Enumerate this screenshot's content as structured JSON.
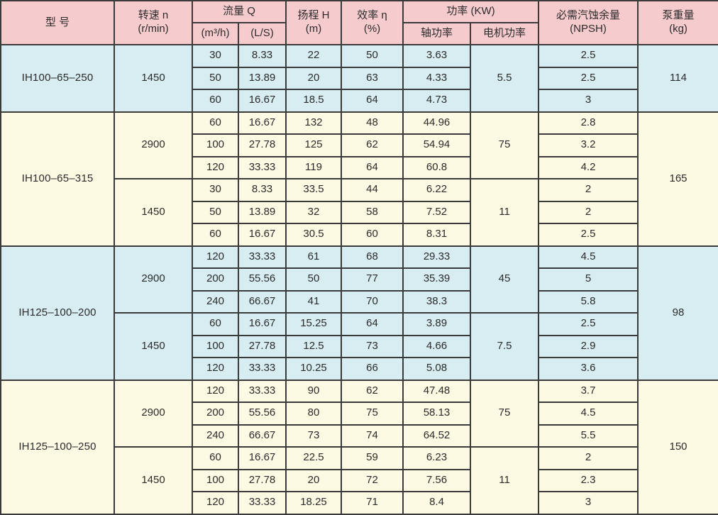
{
  "colors": {
    "header_bg": "#f6cbce",
    "row_blue": "#d7edf2",
    "row_yellow": "#fdfae4",
    "border": "#3a3a3a",
    "text": "#2b2b2b"
  },
  "table": {
    "headers": {
      "model": "型 号",
      "speed_line1": "转速 n",
      "speed_line2": "(r/min)",
      "flow": "流量 Q",
      "flow_m3h": "(m³/h)",
      "flow_ls": "(L/S)",
      "head_line1": "扬程 H",
      "head_line2": "(m)",
      "eff_line1": "效率  η",
      "eff_line2": "(%)",
      "power": "功率 (KW)",
      "shaft_power": "轴功率",
      "motor_power": "电机功率",
      "npsh_line1": "必需汽蚀余量",
      "npsh_line2": "(NPSH)",
      "weight_line1": "泵重量",
      "weight_line2": "(kg)"
    },
    "groups": [
      {
        "model": "IH100–65–250",
        "color": "blue",
        "weight": "114",
        "blocks": [
          {
            "speed": "1450",
            "motor": "5.5",
            "rows": [
              [
                "30",
                "8.33",
                "22",
                "50",
                "3.63",
                "2.5"
              ],
              [
                "50",
                "13.89",
                "20",
                "63",
                "4.33",
                "2.5"
              ],
              [
                "60",
                "16.67",
                "18.5",
                "64",
                "4.73",
                "3"
              ]
            ]
          }
        ]
      },
      {
        "model": "IH100–65–315",
        "color": "yellow",
        "weight": "165",
        "blocks": [
          {
            "speed": "2900",
            "motor": "75",
            "rows": [
              [
                "60",
                "16.67",
                "132",
                "48",
                "44.96",
                "2.8"
              ],
              [
                "100",
                "27.78",
                "125",
                "62",
                "54.94",
                "3.2"
              ],
              [
                "120",
                "33.33",
                "119",
                "64",
                "60.8",
                "4.2"
              ]
            ]
          },
          {
            "speed": "1450",
            "motor": "11",
            "rows": [
              [
                "30",
                "8.33",
                "33.5",
                "44",
                "6.22",
                "2"
              ],
              [
                "50",
                "13.89",
                "32",
                "58",
                "7.52",
                "2"
              ],
              [
                "60",
                "16.67",
                "30.5",
                "60",
                "8.31",
                "2.5"
              ]
            ]
          }
        ]
      },
      {
        "model": "IH125–100–200",
        "color": "blue",
        "weight": "98",
        "blocks": [
          {
            "speed": "2900",
            "motor": "45",
            "rows": [
              [
                "120",
                "33.33",
                "61",
                "68",
                "29.33",
                "4.5"
              ],
              [
                "200",
                "55.56",
                "50",
                "77",
                "35.39",
                "5"
              ],
              [
                "240",
                "66.67",
                "41",
                "70",
                "38.3",
                "5.8"
              ]
            ]
          },
          {
            "speed": "1450",
            "motor": "7.5",
            "rows": [
              [
                "60",
                "16.67",
                "15.25",
                "64",
                "3.89",
                "2.5"
              ],
              [
                "100",
                "27.78",
                "12.5",
                "73",
                "4.66",
                "2.9"
              ],
              [
                "120",
                "33.33",
                "10.25",
                "66",
                "5.08",
                "3.6"
              ]
            ]
          }
        ]
      },
      {
        "model": "IH125–100–250",
        "color": "yellow",
        "weight": "150",
        "blocks": [
          {
            "speed": "2900",
            "motor": "75",
            "rows": [
              [
                "120",
                "33.33",
                "90",
                "62",
                "47.48",
                "3.7"
              ],
              [
                "200",
                "55.56",
                "80",
                "75",
                "58.13",
                "4.5"
              ],
              [
                "240",
                "66.67",
                "73",
                "74",
                "64.52",
                "5.5"
              ]
            ]
          },
          {
            "speed": "1450",
            "motor": "11",
            "rows": [
              [
                "60",
                "16.67",
                "22.5",
                "59",
                "6.23",
                "2"
              ],
              [
                "100",
                "27.78",
                "20",
                "72",
                "7.56",
                "2.3"
              ],
              [
                "120",
                "33.33",
                "18.25",
                "71",
                "8.4",
                "3"
              ]
            ]
          }
        ]
      }
    ]
  }
}
